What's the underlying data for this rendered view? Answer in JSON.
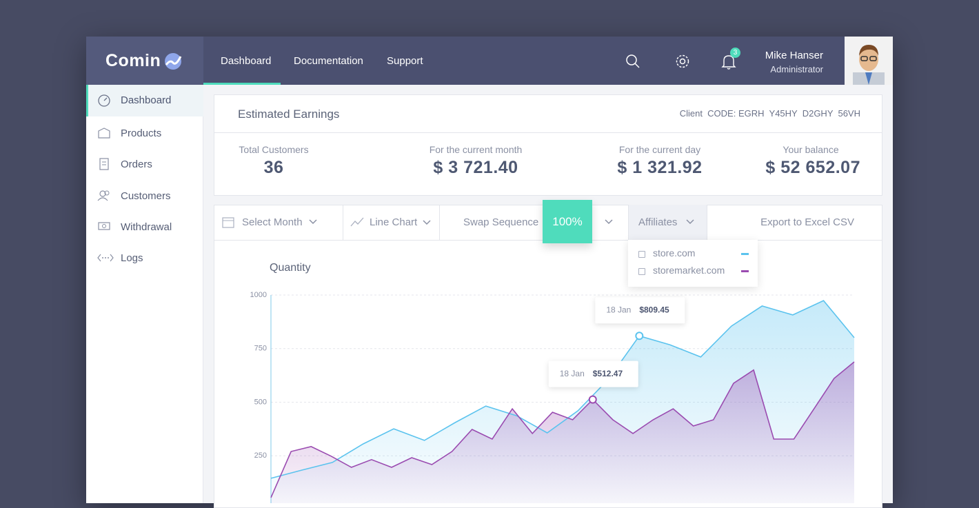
{
  "logo": "Comin",
  "nav": [
    "Dashboard",
    "Documentation",
    "Support"
  ],
  "notifications": 3,
  "user": {
    "name": "Mike Hanser",
    "role": "Administrator"
  },
  "sidebar": [
    "Dashboard",
    "Products",
    "Orders",
    "Customers",
    "Withdrawal",
    "Logs"
  ],
  "earnings": {
    "title": "Estimated Earnings",
    "client_code_label": "Client  CODE:",
    "client_code": "EGRH  Y45HY  D2GHY  56VH",
    "stats": [
      {
        "label": "Total Customers",
        "value": "36"
      },
      {
        "label": "For the current month",
        "value": "$ 3 721.40"
      },
      {
        "label": "For the current day",
        "value": "$ 1 321.92"
      },
      {
        "label": "Your balance",
        "value": "$ 52 652.07"
      }
    ]
  },
  "toolbar": {
    "select_month": "Select Month",
    "chart_type": "Line Chart",
    "swap": "Swap Sequence",
    "zoom": "100%",
    "affiliates": "Affiliates",
    "export": "Export to Excel CSV"
  },
  "chart_data": {
    "type": "line",
    "title": "Quantity",
    "ylim": [
      0,
      1000
    ],
    "yticks": [
      250,
      500,
      750,
      1000
    ],
    "grid": true,
    "series": [
      {
        "name": "store.com",
        "color": "#5bc3ee",
        "values": [
          145,
          183,
          219,
          305,
          376,
          322,
          405,
          482,
          437,
          357,
          460,
          608,
          809.45,
          768,
          711,
          855,
          949,
          907,
          974,
          801
        ]
      },
      {
        "name": "storemarket.com",
        "color": "#9a4bb0",
        "values": [
          55,
          270,
          293,
          248,
          196,
          232,
          196,
          241,
          209,
          270,
          373,
          328,
          469,
          354,
          453,
          418,
          512.47,
          418,
          354,
          418,
          469,
          389,
          418,
          588,
          650,
          328,
          328,
          469,
          611,
          688
        ]
      }
    ],
    "tooltips": [
      {
        "series": "store.com",
        "date": "18 Jan",
        "value": 809.45,
        "label": "$809.45"
      },
      {
        "series": "storemarket.com",
        "date": "18 Jan",
        "value": 512.47,
        "label": "$512.47"
      }
    ]
  }
}
